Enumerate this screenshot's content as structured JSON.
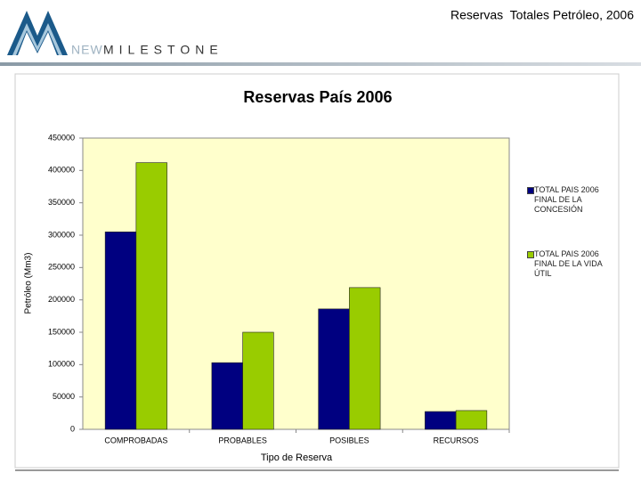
{
  "header": {
    "title": "Reservas  Totales Petróleo, 2006",
    "logo_new": "NEW",
    "logo_milestone": "MILESTONE"
  },
  "chart_data": {
    "type": "bar",
    "title": "Reservas País 2006",
    "x_label": "Tipo de Reserva",
    "y_label": "Petróleo (Mm3)",
    "categories": [
      "COMPROBADAS",
      "PROBABLES",
      "POSIBLES",
      "RECURSOS"
    ],
    "series": [
      {
        "name": "TOTAL PAIS 2006 FINAL DE LA CONCESIÓN",
        "color": "#000080",
        "values": [
          305000,
          103000,
          186000,
          27500
        ]
      },
      {
        "name": "TOTAL PAIS 2006 FINAL DE LA VIDA ÚTIL",
        "color": "#99cc00",
        "values": [
          412000,
          150000,
          219000,
          29000
        ]
      }
    ],
    "ylim": [
      0,
      450000
    ],
    "yticks": [
      0,
      50000,
      100000,
      150000,
      200000,
      250000,
      300000,
      350000,
      400000,
      450000
    ],
    "grid": false,
    "legend": "right"
  }
}
